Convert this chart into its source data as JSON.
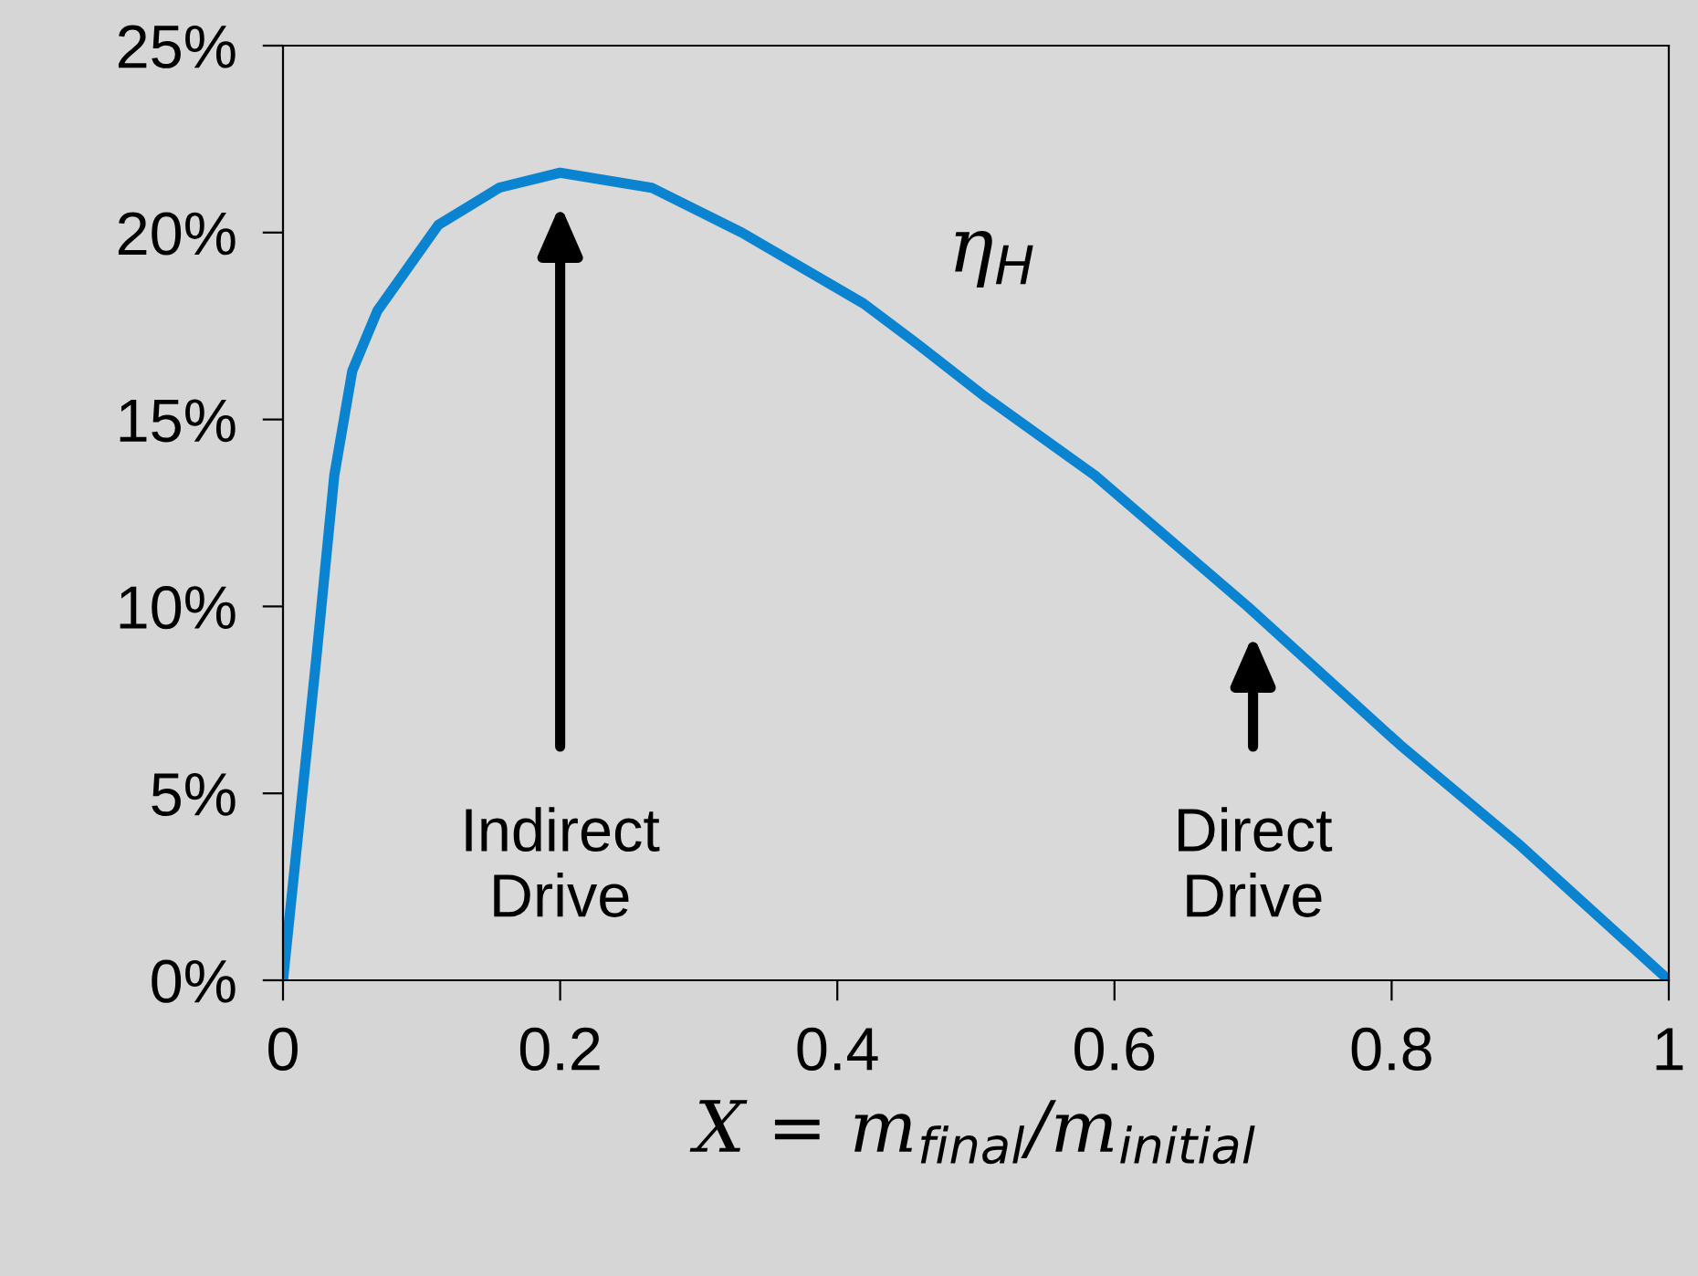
{
  "chart_data": {
    "type": "line",
    "xlabel": "X = m$_{final}$/m$_{initial}$",
    "series": [
      {
        "name": "η$_{H}$",
        "color": "#0a84d0",
        "x": [
          0,
          0.024,
          0.037,
          0.05,
          0.068,
          0.112,
          0.156,
          0.2,
          0.266,
          0.331,
          0.419,
          0.455,
          0.507,
          0.586,
          0.696,
          0.806,
          0.893,
          1.0
        ],
        "values": [
          0,
          8.6,
          13.5,
          16.3,
          17.9,
          20.2,
          21.2,
          21.6,
          21.2,
          20.0,
          18.1,
          17.1,
          15.6,
          13.5,
          10.0,
          6.3,
          3.6,
          0
        ]
      }
    ],
    "xlim": [
      0,
      1
    ],
    "xticks": [
      0,
      0.2,
      0.4,
      0.6,
      0.8,
      1
    ],
    "ylim": [
      0,
      25
    ],
    "yticks": [
      {
        "value": 0,
        "label": "0%"
      },
      {
        "value": 5,
        "label": "5%"
      },
      {
        "value": 10,
        "label": "10%"
      },
      {
        "value": 15,
        "label": "15%"
      },
      {
        "value": 20,
        "label": "20%"
      },
      {
        "value": 25,
        "label": "25%"
      }
    ],
    "annotations": [
      "Indirect\nDrive",
      "Direct\nDrive"
    ],
    "grid": false,
    "legend": false,
    "marker": "none",
    "line_style": "solid"
  }
}
